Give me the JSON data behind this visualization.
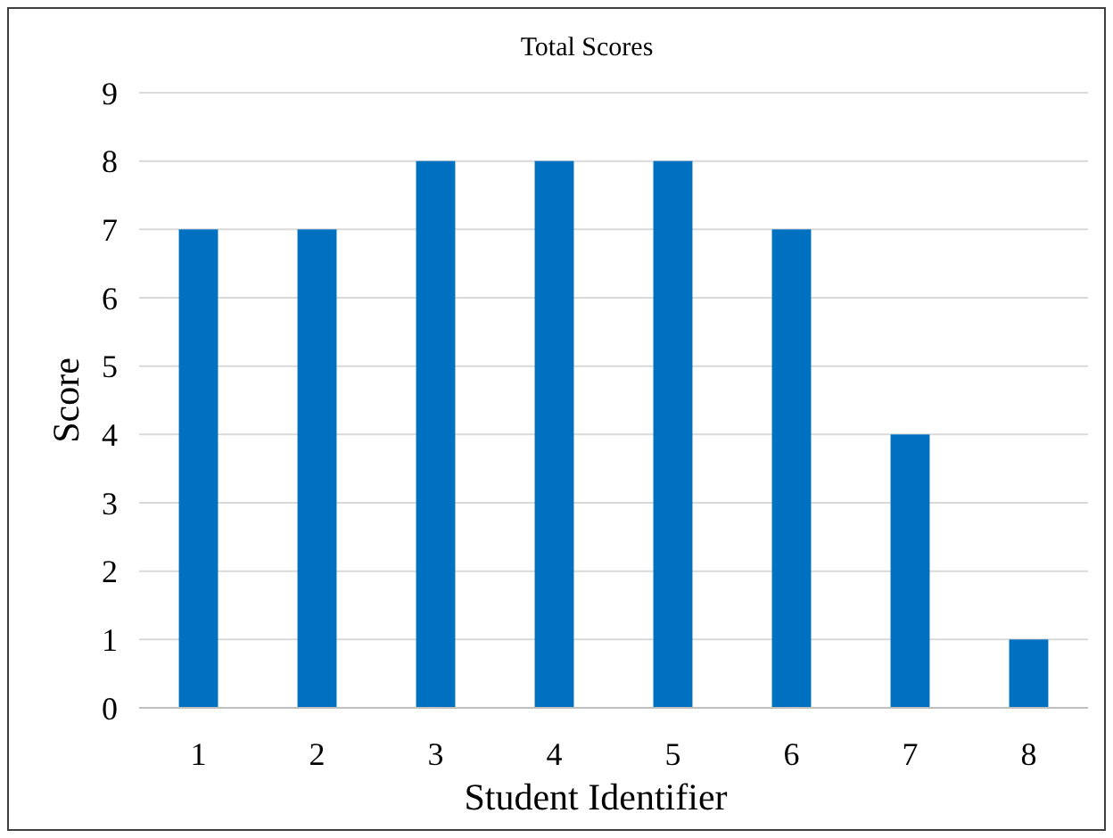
{
  "chart_data": {
    "type": "bar",
    "title": "Total Scores",
    "xlabel": "Student Identifier",
    "ylabel": "Score",
    "categories": [
      "1",
      "2",
      "3",
      "4",
      "5",
      "6",
      "7",
      "8"
    ],
    "values": [
      7,
      7,
      8,
      8,
      8,
      7,
      4,
      1
    ],
    "color": "#0070c0",
    "ylim": [
      0,
      9
    ],
    "yticks": [
      0,
      1,
      2,
      3,
      4,
      5,
      6,
      7,
      8,
      9
    ],
    "grid": "y"
  }
}
